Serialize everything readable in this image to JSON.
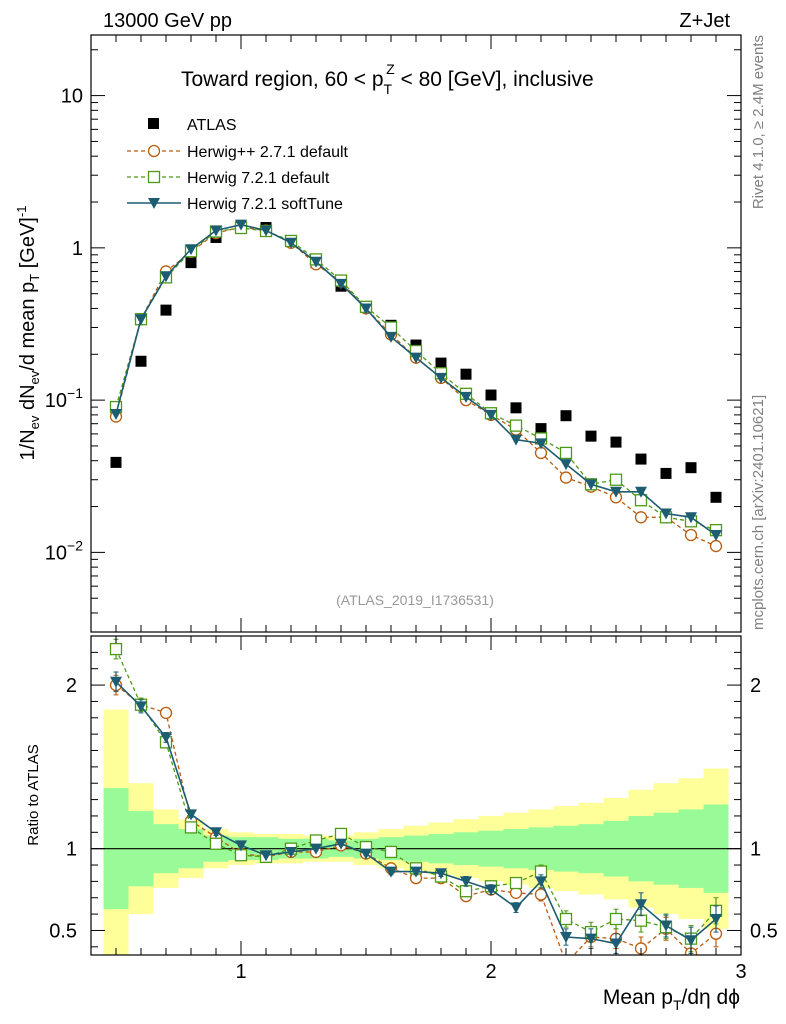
{
  "header": {
    "left": "13000 GeV pp",
    "right": "Z+Jet"
  },
  "side_labels": {
    "rivet": "Rivet 4.1.0, ≥ 2.4M events",
    "mcplots": "mcplots.cern.ch [arXiv:2401.10621]"
  },
  "colors": {
    "atlas": "#000000",
    "herwigpp": "#b85c0e",
    "herwig_default": "#4e9a18",
    "herwig_soft": "#1d5d72",
    "band_inner": "#98fb98",
    "band_outer": "#ffff99"
  },
  "chart_data": [
    {
      "type": "scatter",
      "title": "Toward region, 60 < p_T^Z < 80 [GeV], inclusive",
      "title_parts": {
        "a": "Toward region, 60 < p",
        "sub": "T",
        "sup": "Z",
        "b": " < 80 [GeV], inclusive"
      },
      "analysis_id": "(ATLAS_2019_I1736531)",
      "ylabel": "1/N_ev dN_ev/d mean p_T [GeV]^-1",
      "ylabel_parts": {
        "a": "1/N",
        "sub1": "ev",
        "b": " dN",
        "sub2": "ev",
        "c": "/d mean p",
        "sub3": "T",
        "d": " [GeV]",
        "sup": "-1"
      },
      "yscale": "log",
      "ylim": [
        0.003,
        25
      ],
      "xlim": [
        0.4,
        3.0
      ],
      "yticks": [
        {
          "v": 10,
          "label": "10"
        },
        {
          "v": 1,
          "label": "1"
        },
        {
          "v": 0.1,
          "base": "10",
          "exp": "−1"
        },
        {
          "v": 0.01,
          "base": "10",
          "exp": "−2"
        }
      ],
      "legend_position": "top-left",
      "legend": [
        "ATLAS",
        "Herwig++ 2.7.1 default",
        "Herwig 7.2.1 default",
        "Herwig 7.2.1 softTune"
      ],
      "x": [
        0.5,
        0.6,
        0.7,
        0.8,
        0.9,
        1.0,
        1.1,
        1.2,
        1.3,
        1.4,
        1.5,
        1.6,
        1.7,
        1.8,
        1.9,
        2.0,
        2.1,
        2.2,
        2.3,
        2.4,
        2.5,
        2.6,
        2.7,
        2.8,
        2.9
      ],
      "series": [
        {
          "name": "ATLAS",
          "marker": "filled-square",
          "values": [
            0.039,
            0.18,
            0.39,
            0.8,
            1.17,
            1.4,
            1.36,
            1.1,
            0.8,
            0.56,
            0.41,
            0.31,
            0.23,
            0.175,
            0.148,
            0.108,
            0.089,
            0.065,
            0.079,
            0.058,
            0.053,
            0.041,
            0.033,
            0.036,
            0.023
          ]
        },
        {
          "name": "Herwig++ 2.7.1 default",
          "marker": "open-circle",
          "values": [
            0.078,
            0.34,
            0.7,
            0.94,
            1.25,
            1.37,
            1.3,
            1.08,
            0.78,
            0.6,
            0.4,
            0.27,
            0.19,
            0.14,
            0.1,
            0.08,
            0.064,
            0.045,
            0.031,
            0.027,
            0.023,
            0.017,
            0.017,
            0.013,
            0.011
          ]
        },
        {
          "name": "Herwig 7.2.1 default",
          "marker": "open-square",
          "values": [
            0.09,
            0.34,
            0.64,
            0.95,
            1.28,
            1.35,
            1.29,
            1.11,
            0.84,
            0.61,
            0.41,
            0.3,
            0.21,
            0.15,
            0.11,
            0.082,
            0.068,
            0.056,
            0.045,
            0.028,
            0.03,
            0.022,
            0.017,
            0.016,
            0.014
          ]
        },
        {
          "name": "Herwig 7.2.1 softTune",
          "marker": "filled-triangle-down",
          "values": [
            0.081,
            0.34,
            0.65,
            0.98,
            1.3,
            1.42,
            1.3,
            1.08,
            0.81,
            0.58,
            0.4,
            0.26,
            0.19,
            0.14,
            0.105,
            0.08,
            0.055,
            0.052,
            0.038,
            0.028,
            0.025,
            0.025,
            0.018,
            0.017,
            0.013
          ]
        }
      ]
    },
    {
      "type": "scatter",
      "ylabel": "Ratio to ATLAS",
      "xlabel": "Mean p_T/dη dϕ",
      "xlabel_parts": {
        "a": "Mean p",
        "sub": "T",
        "b": "/dη dϕ"
      },
      "ylim": [
        0.35,
        2.3
      ],
      "xlim": [
        0.4,
        3.0
      ],
      "xticks": [
        1,
        2,
        3
      ],
      "yticks": [
        0.5,
        1,
        2
      ],
      "reference_line": 1,
      "band_edges": [
        0.45,
        0.55,
        0.65,
        0.75,
        0.85,
        0.95,
        1.05,
        1.15,
        1.25,
        1.35,
        1.45,
        1.55,
        1.65,
        1.75,
        1.85,
        1.95,
        2.05,
        2.15,
        2.25,
        2.35,
        2.45,
        2.55,
        2.65,
        2.75,
        2.85,
        2.95
      ],
      "band_inner": [
        [
          0.63,
          1.37
        ],
        [
          0.77,
          1.23
        ],
        [
          0.85,
          1.15
        ],
        [
          0.88,
          1.12
        ],
        [
          0.92,
          1.08
        ],
        [
          0.93,
          1.07
        ],
        [
          0.93,
          1.07
        ],
        [
          0.94,
          1.06
        ],
        [
          0.94,
          1.06
        ],
        [
          0.95,
          1.05
        ],
        [
          0.94,
          1.06
        ],
        [
          0.93,
          1.07
        ],
        [
          0.92,
          1.08
        ],
        [
          0.91,
          1.09
        ],
        [
          0.9,
          1.1
        ],
        [
          0.89,
          1.11
        ],
        [
          0.88,
          1.12
        ],
        [
          0.87,
          1.13
        ],
        [
          0.86,
          1.14
        ],
        [
          0.85,
          1.15
        ],
        [
          0.83,
          1.17
        ],
        [
          0.8,
          1.2
        ],
        [
          0.78,
          1.22
        ],
        [
          0.76,
          1.24
        ],
        [
          0.73,
          1.27
        ]
      ],
      "band_outer": [
        [
          0.0,
          1.85
        ],
        [
          0.6,
          1.4
        ],
        [
          0.76,
          1.24
        ],
        [
          0.82,
          1.18
        ],
        [
          0.88,
          1.12
        ],
        [
          0.9,
          1.1
        ],
        [
          0.91,
          1.09
        ],
        [
          0.91,
          1.09
        ],
        [
          0.92,
          1.08
        ],
        [
          0.92,
          1.08
        ],
        [
          0.9,
          1.1
        ],
        [
          0.88,
          1.12
        ],
        [
          0.86,
          1.14
        ],
        [
          0.84,
          1.16
        ],
        [
          0.82,
          1.18
        ],
        [
          0.8,
          1.2
        ],
        [
          0.78,
          1.22
        ],
        [
          0.76,
          1.24
        ],
        [
          0.74,
          1.26
        ],
        [
          0.72,
          1.28
        ],
        [
          0.69,
          1.31
        ],
        [
          0.64,
          1.36
        ],
        [
          0.6,
          1.4
        ],
        [
          0.57,
          1.43
        ],
        [
          0.51,
          1.49
        ]
      ],
      "x": [
        0.5,
        0.6,
        0.7,
        0.8,
        0.9,
        1.0,
        1.1,
        1.2,
        1.3,
        1.4,
        1.5,
        1.6,
        1.7,
        1.8,
        1.9,
        2.0,
        2.1,
        2.2,
        2.3,
        2.4,
        2.5,
        2.6,
        2.7,
        2.8,
        2.9
      ],
      "series": [
        {
          "name": "Herwig++ 2.7.1 default",
          "marker": "open-circle",
          "values": [
            2.0,
            1.88,
            1.83,
            1.17,
            1.07,
            0.97,
            0.95,
            0.98,
            0.98,
            1.02,
            0.97,
            0.88,
            0.82,
            0.82,
            0.71,
            0.75,
            0.73,
            0.72,
            0.3,
            0.46,
            0.45,
            0.39,
            0.51,
            0.36,
            0.48
          ],
          "errors": [
            0.06,
            0.04,
            0.03,
            0.02,
            0.02,
            0.01,
            0.01,
            0.01,
            0.01,
            0.01,
            0.01,
            0.02,
            0.02,
            0.02,
            0.03,
            0.03,
            0.03,
            0.04,
            0.05,
            0.06,
            0.06,
            0.07,
            0.07,
            0.08,
            0.08
          ]
        },
        {
          "name": "Herwig 7.2.1 default",
          "marker": "open-square",
          "values": [
            2.22,
            1.88,
            1.65,
            1.13,
            1.03,
            0.96,
            0.95,
            1.0,
            1.05,
            1.09,
            1.01,
            0.98,
            0.88,
            0.83,
            0.74,
            0.77,
            0.79,
            0.86,
            0.57,
            0.49,
            0.57,
            0.56,
            0.52,
            0.45,
            0.62
          ],
          "errors": [
            0.06,
            0.04,
            0.03,
            0.02,
            0.02,
            0.01,
            0.01,
            0.01,
            0.01,
            0.01,
            0.01,
            0.02,
            0.02,
            0.02,
            0.03,
            0.03,
            0.03,
            0.04,
            0.05,
            0.06,
            0.06,
            0.07,
            0.07,
            0.08,
            0.08
          ]
        },
        {
          "name": "Herwig 7.2.1 softTune",
          "marker": "filled-triangle-down",
          "values": [
            2.02,
            1.87,
            1.68,
            1.21,
            1.1,
            1.02,
            0.96,
            0.98,
            1.0,
            1.03,
            0.97,
            0.86,
            0.86,
            0.85,
            0.8,
            0.75,
            0.64,
            0.8,
            0.46,
            0.45,
            0.42,
            0.66,
            0.53,
            0.44,
            0.57
          ],
          "errors": [
            0.06,
            0.04,
            0.03,
            0.02,
            0.02,
            0.01,
            0.01,
            0.01,
            0.01,
            0.01,
            0.01,
            0.02,
            0.02,
            0.02,
            0.03,
            0.03,
            0.03,
            0.04,
            0.05,
            0.06,
            0.06,
            0.07,
            0.07,
            0.08,
            0.08
          ]
        }
      ]
    }
  ]
}
